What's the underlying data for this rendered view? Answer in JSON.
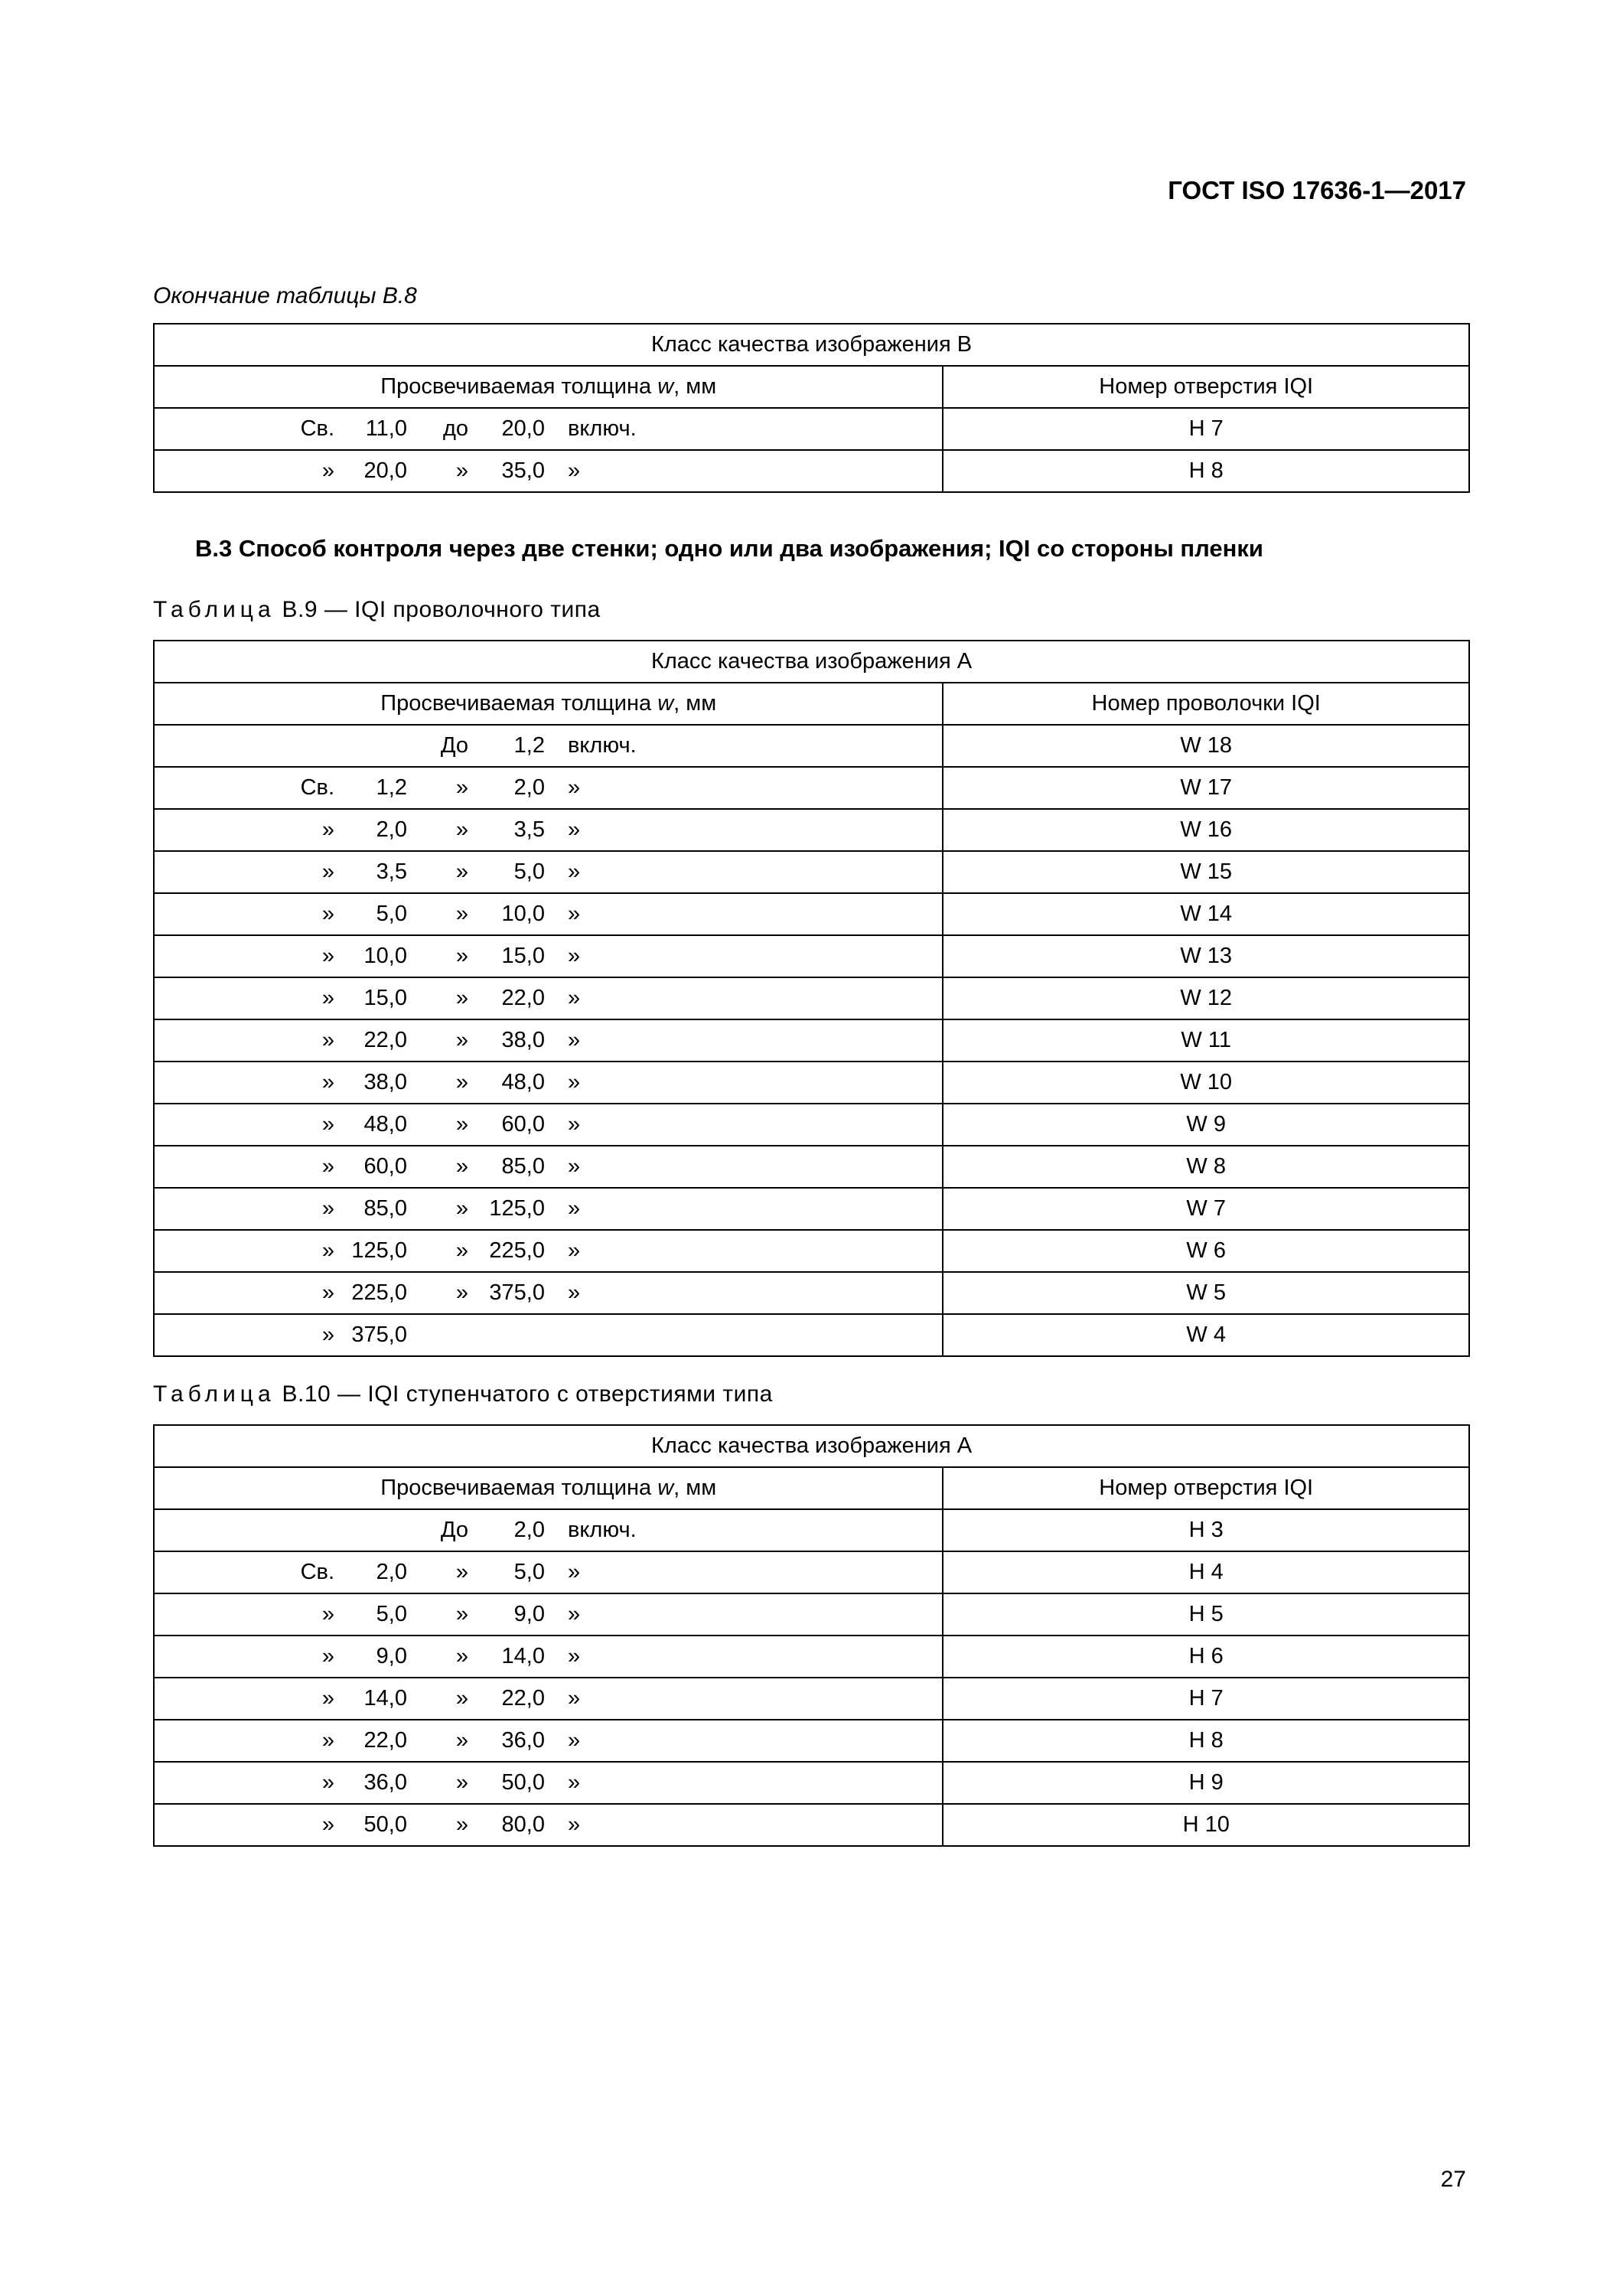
{
  "header": {
    "doc_code": "ГОСТ ISO 17636-1—2017"
  },
  "page_number": "27",
  "table_b8_end": {
    "note": "Окончание таблицы В.8",
    "class_header": "Класс качества изображения B",
    "col_thickness_plain": "Просвечиваемая толщина ",
    "col_thickness_var": "w",
    "col_thickness_unit": ", мм",
    "col_iqi": "Номер отверстия IQI",
    "rows": [
      {
        "from_lbl": "Св.",
        "from_val": "11,0",
        "to_lbl": "до",
        "to_val": "20,0",
        "suffix": "включ.",
        "iqi": "H 7"
      },
      {
        "from_lbl": "»",
        "from_val": "20,0",
        "to_lbl": "»",
        "to_val": "35,0",
        "suffix": "»",
        "iqi": "H 8"
      }
    ]
  },
  "section_b3": {
    "heading": "B.3  Способ контроля через две стенки; одно или два изображения; IQI со стороны пленки"
  },
  "table_b9": {
    "caption_prefix": "Таблица",
    "caption_rest": "  B.9  — IQI проволочного типа",
    "class_header": "Класс качества изображения A",
    "col_thickness_plain": "Просвечиваемая толщина ",
    "col_thickness_var": "w",
    "col_thickness_unit": ", мм",
    "col_iqi": "Номер проволочки IQI",
    "rows": [
      {
        "from_lbl": "",
        "from_val": "",
        "to_lbl": "До",
        "to_val": "1,2",
        "suffix": "включ.",
        "iqi": "W 18"
      },
      {
        "from_lbl": "Св.",
        "from_val": "1,2",
        "to_lbl": "»",
        "to_val": "2,0",
        "suffix": "»",
        "iqi": "W 17"
      },
      {
        "from_lbl": "»",
        "from_val": "2,0",
        "to_lbl": "»",
        "to_val": "3,5",
        "suffix": "»",
        "iqi": "W 16"
      },
      {
        "from_lbl": "»",
        "from_val": "3,5",
        "to_lbl": "»",
        "to_val": "5,0",
        "suffix": "»",
        "iqi": "W 15"
      },
      {
        "from_lbl": "»",
        "from_val": "5,0",
        "to_lbl": "»",
        "to_val": "10,0",
        "suffix": "»",
        "iqi": "W 14"
      },
      {
        "from_lbl": "»",
        "from_val": "10,0",
        "to_lbl": "»",
        "to_val": "15,0",
        "suffix": "»",
        "iqi": "W 13"
      },
      {
        "from_lbl": "»",
        "from_val": "15,0",
        "to_lbl": "»",
        "to_val": "22,0",
        "suffix": "»",
        "iqi": "W 12"
      },
      {
        "from_lbl": "»",
        "from_val": "22,0",
        "to_lbl": "»",
        "to_val": "38,0",
        "suffix": "»",
        "iqi": "W 11"
      },
      {
        "from_lbl": "»",
        "from_val": "38,0",
        "to_lbl": "»",
        "to_val": "48,0",
        "suffix": "»",
        "iqi": "W 10"
      },
      {
        "from_lbl": "»",
        "from_val": "48,0",
        "to_lbl": "»",
        "to_val": "60,0",
        "suffix": "»",
        "iqi": "W 9"
      },
      {
        "from_lbl": "»",
        "from_val": "60,0",
        "to_lbl": "»",
        "to_val": "85,0",
        "suffix": "»",
        "iqi": "W 8"
      },
      {
        "from_lbl": "»",
        "from_val": "85,0",
        "to_lbl": "»",
        "to_val": "125,0",
        "suffix": "»",
        "iqi": "W 7"
      },
      {
        "from_lbl": "»",
        "from_val": "125,0",
        "to_lbl": "»",
        "to_val": "225,0",
        "suffix": "»",
        "iqi": "W 6"
      },
      {
        "from_lbl": "»",
        "from_val": "225,0",
        "to_lbl": "»",
        "to_val": "375,0",
        "suffix": "»",
        "iqi": "W 5"
      },
      {
        "from_lbl": "»",
        "from_val": "375,0",
        "to_lbl": "",
        "to_val": "",
        "suffix": "",
        "iqi": "W 4"
      }
    ]
  },
  "table_b10": {
    "caption_prefix": "Таблица",
    "caption_rest": "  B.10  — IQI ступенчатого с отверстиями типа",
    "class_header": "Класс качества изображения A",
    "col_thickness_plain": "Просвечиваемая толщина ",
    "col_thickness_var": "w",
    "col_thickness_unit": ", мм",
    "col_iqi": "Номер отверстия IQI",
    "rows": [
      {
        "from_lbl": "",
        "from_val": "",
        "to_lbl": "До",
        "to_val": "2,0",
        "suffix": "включ.",
        "iqi": "H 3"
      },
      {
        "from_lbl": "Св.",
        "from_val": "2,0",
        "to_lbl": "»",
        "to_val": "5,0",
        "suffix": "»",
        "iqi": "H 4"
      },
      {
        "from_lbl": "»",
        "from_val": "5,0",
        "to_lbl": "»",
        "to_val": "9,0",
        "suffix": "»",
        "iqi": "H 5"
      },
      {
        "from_lbl": "»",
        "from_val": "9,0",
        "to_lbl": "»",
        "to_val": "14,0",
        "suffix": "»",
        "iqi": "H 6"
      },
      {
        "from_lbl": "»",
        "from_val": "14,0",
        "to_lbl": "»",
        "to_val": "22,0",
        "suffix": "»",
        "iqi": "H 7"
      },
      {
        "from_lbl": "»",
        "from_val": "22,0",
        "to_lbl": "»",
        "to_val": "36,0",
        "suffix": "»",
        "iqi": "H 8"
      },
      {
        "from_lbl": "»",
        "from_val": "36,0",
        "to_lbl": "»",
        "to_val": "50,0",
        "suffix": "»",
        "iqi": "H 9"
      },
      {
        "from_lbl": "»",
        "from_val": "50,0",
        "to_lbl": "»",
        "to_val": "80,0",
        "suffix": "»",
        "iqi": "H 10"
      }
    ]
  },
  "layout": {
    "col_thickness_width_pct": 60,
    "col_iqi_width_pct": 40
  }
}
